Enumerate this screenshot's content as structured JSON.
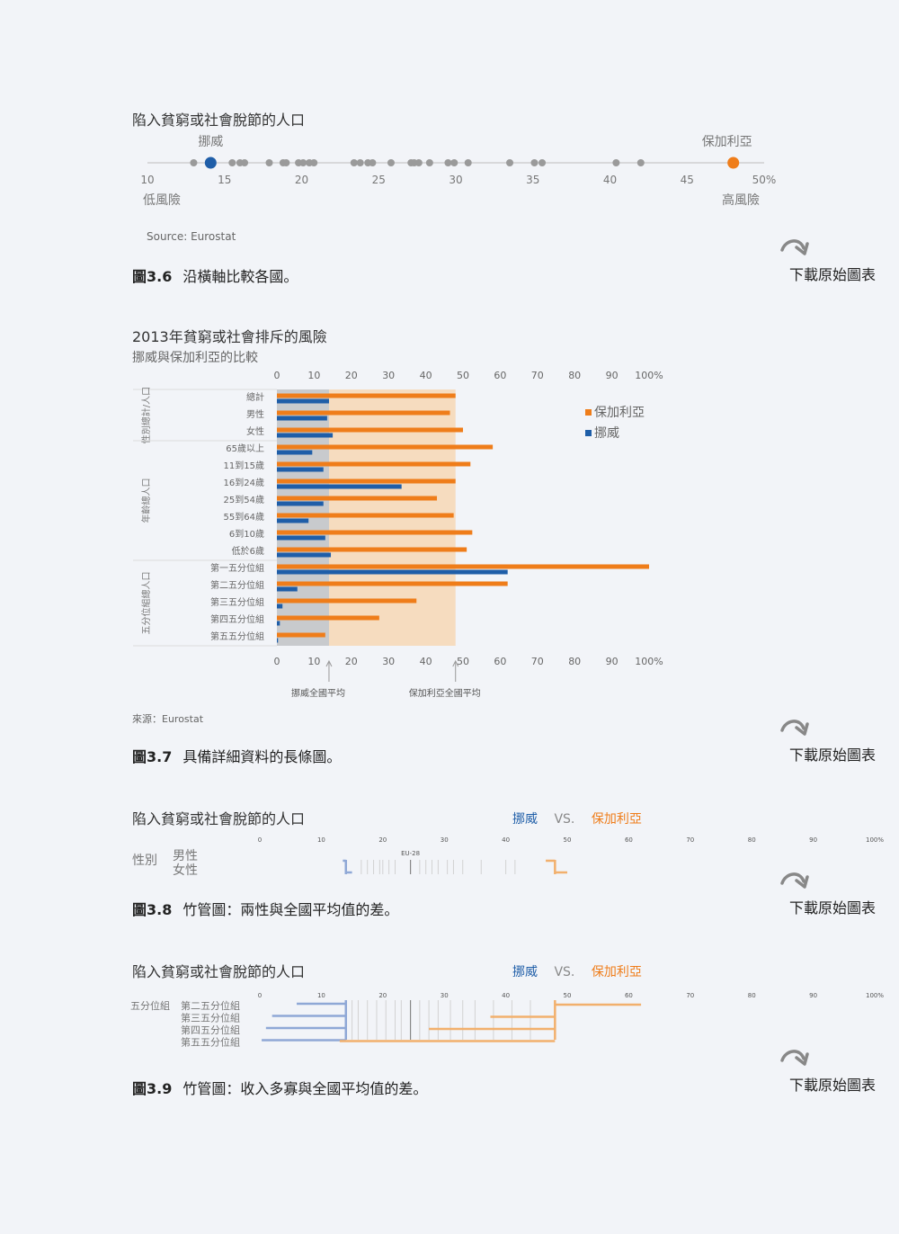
{
  "colors": {
    "bulgaria": "#ef7d1a",
    "norway": "#1f5ea8",
    "gray_dot": "#9a9a9a",
    "norway_band": "#c8cacd",
    "bulgaria_band": "#f6dcbf",
    "background": "#f2f4f8"
  },
  "download_label": "下載原始圖表",
  "download_icon": "curved-arrow-icon",
  "fig36": {
    "title": "陷入貧窮或社會脫節的人口",
    "label_left": "挪威",
    "label_right": "保加利亞",
    "axis_low": "低風險",
    "axis_high": "高風險",
    "source": "Source: Eurostat",
    "caption_num": "圖3.6",
    "caption_text": "沿橫軸比較各國。",
    "chart_data": {
      "type": "scatter",
      "xlim": [
        10,
        50
      ],
      "ticks": [
        "10",
        "15",
        "20",
        "25",
        "30",
        "35",
        "40",
        "45",
        "50%"
      ],
      "tick_values": [
        10,
        15,
        20,
        25,
        30,
        35,
        40,
        45,
        50
      ],
      "gray_values": [
        13,
        15.5,
        16,
        16.3,
        17.9,
        18.8,
        19,
        19.8,
        20.1,
        20.5,
        20.8,
        23.4,
        23.8,
        24.3,
        24.6,
        25.8,
        27.1,
        27.3,
        27.6,
        28.3,
        29.5,
        29.9,
        30.8,
        33.5,
        35.1,
        35.6,
        40.4,
        42
      ],
      "highlight": [
        {
          "name": "挪威",
          "value": 14.1
        },
        {
          "name": "保加利亞",
          "value": 48
        }
      ]
    }
  },
  "fig37": {
    "title": "2013年貧窮或社會排斥的風險",
    "subtitle": "挪威與保加利亞的比較",
    "source": "來源：Eurostat",
    "caption_num": "圖3.7",
    "caption_text": "具備詳細資料的長條圖。",
    "avg_norway_label": "挪威全國平均",
    "avg_bulgaria_label": "保加利亞全國平均",
    "chart_data": {
      "type": "bar",
      "orientation": "horizontal",
      "xlim": [
        0,
        100
      ],
      "ticks": [
        "0",
        "10",
        "20",
        "30",
        "40",
        "50",
        "60",
        "70",
        "80",
        "90",
        "100%"
      ],
      "tick_values": [
        0,
        10,
        20,
        30,
        40,
        50,
        60,
        70,
        80,
        90,
        100
      ],
      "norway_avg": 14,
      "bulgaria_avg": 48,
      "groups": [
        {
          "label": "性別總計/人口",
          "count": 3
        },
        {
          "label": "年齡總人口",
          "count": 7
        },
        {
          "label": "五分位組總人口",
          "count": 5
        }
      ],
      "categories": [
        "總計",
        "男性",
        "女性",
        "65歲以上",
        "11到15歲",
        "16到24歲",
        "25到54歲",
        "55到64歲",
        "6到10歲",
        "低於6歲",
        "第一五分位組",
        "第二五分位組",
        "第三五分位組",
        "第四五分位組",
        "第五五分位組"
      ],
      "series": [
        {
          "name": "保加利亞",
          "values": [
            48,
            46.5,
            50,
            58,
            52,
            48,
            43,
            47.5,
            52.5,
            51,
            100,
            62,
            37.5,
            27.5,
            13
          ]
        },
        {
          "name": "挪威",
          "values": [
            14,
            13.5,
            15,
            9.5,
            12.5,
            33.5,
            12.5,
            8.5,
            13,
            14.5,
            62,
            5.5,
            1.5,
            0.8,
            0.3
          ]
        }
      ]
    }
  },
  "fig38": {
    "title": "陷入貧窮或社會脫節的人口",
    "norway": "挪威",
    "vs": "VS.",
    "bulgaria": "保加利亞",
    "group_label": "性別",
    "rows": [
      "男性",
      "女性"
    ],
    "eu_label": "EU-28",
    "caption_num": "圖3.8",
    "caption_text": "竹管圖：兩性與全國平均值的差。",
    "chart_data": {
      "type": "bar",
      "xlim": [
        0,
        100
      ],
      "ticks": [
        "0",
        "10",
        "20",
        "30",
        "40",
        "50",
        "60",
        "70",
        "80",
        "90",
        "100%"
      ],
      "tick_values": [
        0,
        10,
        20,
        30,
        40,
        50,
        60,
        70,
        80,
        90,
        100
      ],
      "eu_value": 24.5,
      "norway_avg": 14,
      "bulgaria_avg": 48,
      "norway_values": [
        13.5,
        15
      ],
      "bulgaria_values": [
        46.5,
        50
      ],
      "gray_values": [
        16.5,
        17.5,
        18.5,
        19.5,
        20,
        21,
        22,
        24.5,
        26,
        27,
        28,
        29,
        30.5,
        31.5,
        33,
        36,
        40,
        41.5
      ]
    }
  },
  "fig39": {
    "title": "陷入貧窮或社會脫節的人口",
    "norway": "挪威",
    "vs": "VS.",
    "bulgaria": "保加利亞",
    "group_label": "五分位組",
    "rows": [
      "第二五分位組",
      "第三五分位組",
      "第四五分位組",
      "第五五分位組"
    ],
    "caption_num": "圖3.9",
    "caption_text": "竹管圖：收入多寡與全國平均值的差。",
    "chart_data": {
      "type": "bar",
      "xlim": [
        0,
        100
      ],
      "ticks": [
        "0",
        "10",
        "20",
        "30",
        "40",
        "50",
        "60",
        "70",
        "80",
        "90",
        "100%"
      ],
      "tick_values": [
        0,
        10,
        20,
        30,
        40,
        50,
        60,
        70,
        80,
        90,
        100
      ],
      "eu_value": 24.5,
      "norway_avg": 14,
      "bulgaria_avg": 48,
      "norway_values": [
        6,
        2,
        1,
        0.3
      ],
      "bulgaria_values": [
        62,
        37.5,
        27.5,
        13
      ],
      "gray_values": [
        15,
        16,
        17.5,
        19,
        20.5,
        22,
        23,
        26,
        27.5,
        29,
        31,
        33,
        35,
        38,
        41,
        44
      ]
    }
  }
}
